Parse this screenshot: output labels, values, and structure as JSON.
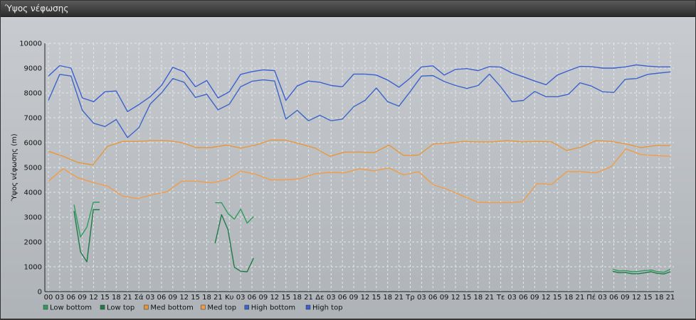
{
  "window": {
    "title": "Ύψος νέφωσης"
  },
  "chart_data": {
    "type": "line",
    "title": "",
    "ylabel": "Ύψος νέφωσης (m)",
    "xlabel": "",
    "ylim": [
      0,
      10000
    ],
    "yticks": [
      0,
      1000,
      2000,
      3000,
      4000,
      5000,
      6000,
      7000,
      8000,
      9000,
      10000
    ],
    "x_tick_labels": [
      "00",
      "03",
      "06",
      "09",
      "12",
      "15",
      "18",
      "21",
      "Σά",
      "03",
      "06",
      "09",
      "12",
      "15",
      "18",
      "21",
      "Κυ",
      "03",
      "06",
      "09",
      "12",
      "15",
      "18",
      "21",
      "Δε",
      "03",
      "06",
      "09",
      "12",
      "15",
      "18",
      "21",
      "Τρ",
      "03",
      "06",
      "09",
      "12",
      "15",
      "18",
      "21",
      "Τε",
      "03",
      "06",
      "09",
      "12",
      "15",
      "18",
      "21",
      "Πέ",
      "03",
      "06",
      "09",
      "12",
      "15",
      "18",
      "21"
    ],
    "grid": true,
    "legend_position": "bottom-left",
    "series": [
      {
        "name": "Low bottom",
        "color": "#2e9c5e",
        "values": [
          null,
          null,
          null,
          null,
          3500,
          2200,
          2600,
          3600,
          3600,
          null,
          null,
          null,
          null,
          null,
          null,
          null,
          null,
          null,
          null,
          null,
          null,
          null,
          null,
          null,
          null,
          null,
          3580,
          3580,
          3150,
          2920,
          3320,
          2760,
          3020,
          null,
          null,
          null,
          null,
          null,
          null,
          null,
          null,
          null,
          null,
          null,
          null,
          null,
          null,
          null,
          null,
          null,
          null,
          null,
          null,
          null,
          null,
          null,
          null,
          null,
          null,
          null,
          null,
          null,
          null,
          null,
          null,
          null,
          null,
          null,
          null,
          null,
          null,
          null,
          null,
          null,
          null,
          null,
          null,
          null,
          null,
          null,
          null,
          null,
          null,
          null,
          null,
          null,
          null,
          null,
          900,
          830,
          850,
          800,
          810,
          850,
          870,
          800,
          780,
          900
        ]
      },
      {
        "name": "Low top",
        "color": "#1e7a46",
        "values": [
          null,
          null,
          null,
          null,
          3250,
          1600,
          1200,
          3300,
          3300,
          null,
          null,
          null,
          null,
          null,
          null,
          null,
          null,
          null,
          null,
          null,
          null,
          null,
          null,
          null,
          null,
          null,
          1950,
          3100,
          2500,
          980,
          820,
          800,
          1350,
          null,
          null,
          null,
          null,
          null,
          null,
          null,
          null,
          null,
          null,
          null,
          null,
          null,
          null,
          null,
          null,
          null,
          null,
          null,
          null,
          null,
          null,
          null,
          null,
          null,
          null,
          null,
          null,
          null,
          null,
          null,
          null,
          null,
          null,
          null,
          null,
          null,
          null,
          null,
          null,
          null,
          null,
          null,
          null,
          null,
          null,
          null,
          null,
          null,
          null,
          null,
          null,
          null,
          null,
          null,
          820,
          760,
          770,
          720,
          720,
          760,
          800,
          730,
          710,
          800
        ]
      },
      {
        "name": "Med bottom",
        "color": "#e8963a",
        "values": [
          5650,
          5450,
          5200,
          5100,
          5850,
          6050,
          6050,
          6080,
          6080,
          6000,
          5800,
          5800,
          5900,
          5780,
          5900,
          6100,
          6100,
          5950,
          5780,
          5450,
          5620,
          5620,
          5600,
          5900,
          5480,
          5500,
          5950,
          5980,
          6050,
          6030,
          6030,
          6080,
          6030,
          6050,
          6030,
          5680,
          5830,
          6080,
          6050,
          5950,
          5800,
          5880,
          5880
        ]
      },
      {
        "name": "Med top",
        "color": "#f29c46",
        "values": [
          4450,
          4950,
          4580,
          4400,
          4250,
          3850,
          3750,
          3900,
          4020,
          4450,
          4450,
          4380,
          4500,
          4850,
          4730,
          4500,
          4500,
          4550,
          4750,
          4800,
          4780,
          4950,
          4860,
          4980,
          4700,
          4830,
          4300,
          4100,
          3850,
          3600,
          3580,
          3580,
          3620,
          4350,
          4320,
          4830,
          4830,
          4780,
          5030,
          5750,
          5520,
          5480,
          5450
        ]
      },
      {
        "name": "High bottom",
        "color": "#3d64c8",
        "values": [
          7700,
          8750,
          8680,
          7300,
          6780,
          6650,
          6930,
          6200,
          6600,
          7550,
          8000,
          8580,
          8430,
          7820,
          7950,
          7320,
          7550,
          8250,
          8470,
          8530,
          8480,
          6950,
          7300,
          6880,
          7100,
          6880,
          6950,
          7450,
          7700,
          8200,
          7650,
          7470,
          8060,
          8680,
          8700,
          8460,
          8300,
          8180,
          8300,
          8760,
          8250,
          7650,
          7700,
          8060,
          7850,
          7850,
          7950,
          8410,
          8280,
          8050,
          8020,
          8550,
          8580,
          8750,
          8800,
          8850
        ]
      },
      {
        "name": "High top",
        "color": "#3a5fd0",
        "values": [
          8680,
          9100,
          9000,
          7800,
          7650,
          8050,
          8080,
          7250,
          7530,
          7850,
          8300,
          9030,
          8850,
          8250,
          8500,
          7800,
          8050,
          8750,
          8860,
          8930,
          8900,
          7700,
          8280,
          8480,
          8430,
          8300,
          8250,
          8760,
          8760,
          8720,
          8520,
          8230,
          8600,
          9050,
          9090,
          8720,
          8950,
          8980,
          8900,
          9060,
          9040,
          8800,
          8650,
          8480,
          8330,
          8720,
          8900,
          9070,
          9060,
          9000,
          9000,
          9050,
          9130,
          9080,
          9050,
          9050
        ]
      }
    ]
  },
  "legend": [
    {
      "label": "Low bottom",
      "color": "#2e9c5e"
    },
    {
      "label": "Low top",
      "color": "#1e7a46"
    },
    {
      "label": "Med bottom",
      "color": "#e8963a"
    },
    {
      "label": "Med top",
      "color": "#f29c46"
    },
    {
      "label": "High bottom",
      "color": "#3d64c8"
    },
    {
      "label": "High top",
      "color": "#3a5fd0"
    }
  ]
}
